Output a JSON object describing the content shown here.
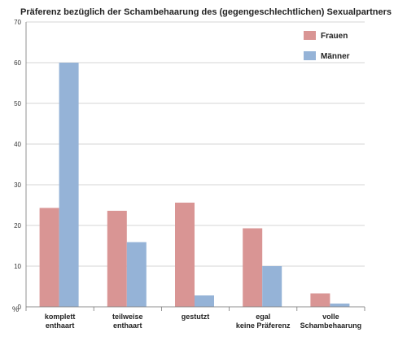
{
  "chart_data": {
    "type": "bar",
    "title": "Präferenz bezüglich der Schambehaarung des (gegengeschlechtlichen) Sexualpartners",
    "ylabel": "%",
    "xlabel": "",
    "ylim": [
      0,
      70
    ],
    "yticks": [
      "0",
      "10",
      "20",
      "30",
      "40",
      "50",
      "60",
      "70"
    ],
    "grid": true,
    "legend_position": "top-right",
    "categories": [
      [
        "komplett",
        "enthaart"
      ],
      [
        "teilweise",
        "enthaart"
      ],
      [
        "gestutzt"
      ],
      [
        "egal",
        "keine Präferenz"
      ],
      [
        "volle",
        "Schambehaarung"
      ]
    ],
    "series": [
      {
        "name": "Frauen",
        "color": "#d99594",
        "values": [
          24.3,
          23.6,
          25.6,
          19.3,
          3.3
        ]
      },
      {
        "name": "Männer",
        "color": "#95b3d7",
        "values": [
          60,
          15.9,
          2.8,
          10,
          0.8
        ]
      }
    ]
  }
}
